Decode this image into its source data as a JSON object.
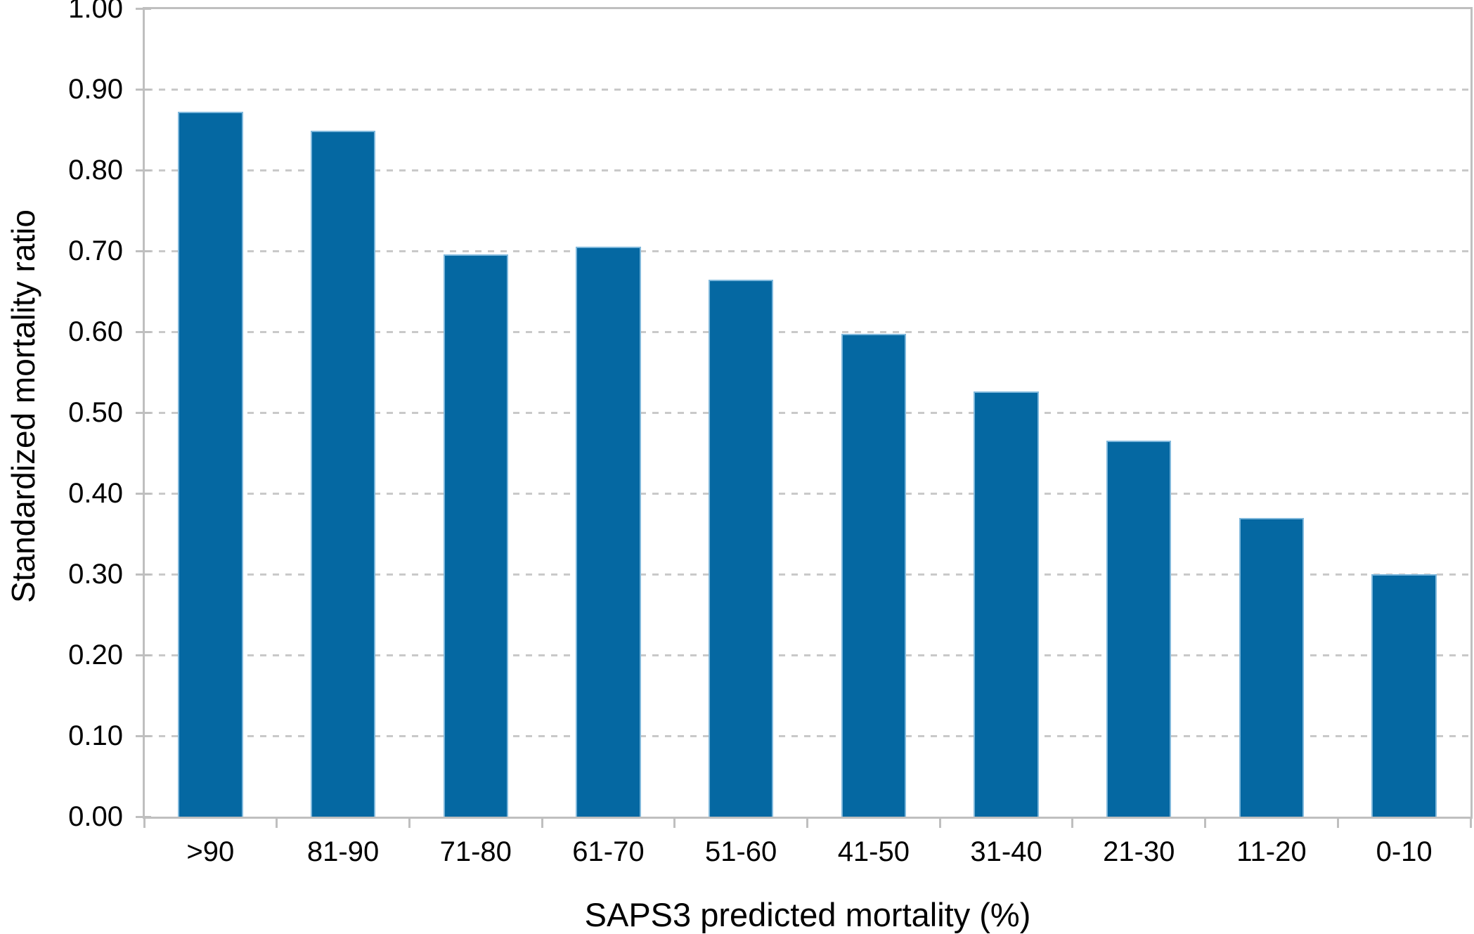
{
  "chart_data": {
    "type": "bar",
    "title": "",
    "xlabel": "SAPS3 predicted mortality (%)",
    "ylabel": "Standardized mortality ratio",
    "categories": [
      ">90",
      "81-90",
      "71-80",
      "61-70",
      "51-60",
      "41-50",
      "31-40",
      "21-30",
      "11-20",
      "0-10"
    ],
    "values": [
      0.872,
      0.849,
      0.696,
      0.705,
      0.664,
      0.597,
      0.526,
      0.465,
      0.37,
      0.3
    ],
    "ylim": [
      0,
      1.0
    ],
    "ytick_step": 0.1,
    "ytick_labels": [
      "0.00",
      "0.10",
      "0.20",
      "0.30",
      "0.40",
      "0.50",
      "0.60",
      "0.70",
      "0.80",
      "0.90",
      "1.00"
    ],
    "grid": "horizontal-dashed",
    "legend": "none",
    "colors": {
      "bar_fill": "#0568A2",
      "bar_edge": "#7FB8DC",
      "gridline": "#C9C9C9",
      "axis": "#BFBFBF",
      "text": "#000000",
      "background": "#FFFFFF"
    }
  }
}
